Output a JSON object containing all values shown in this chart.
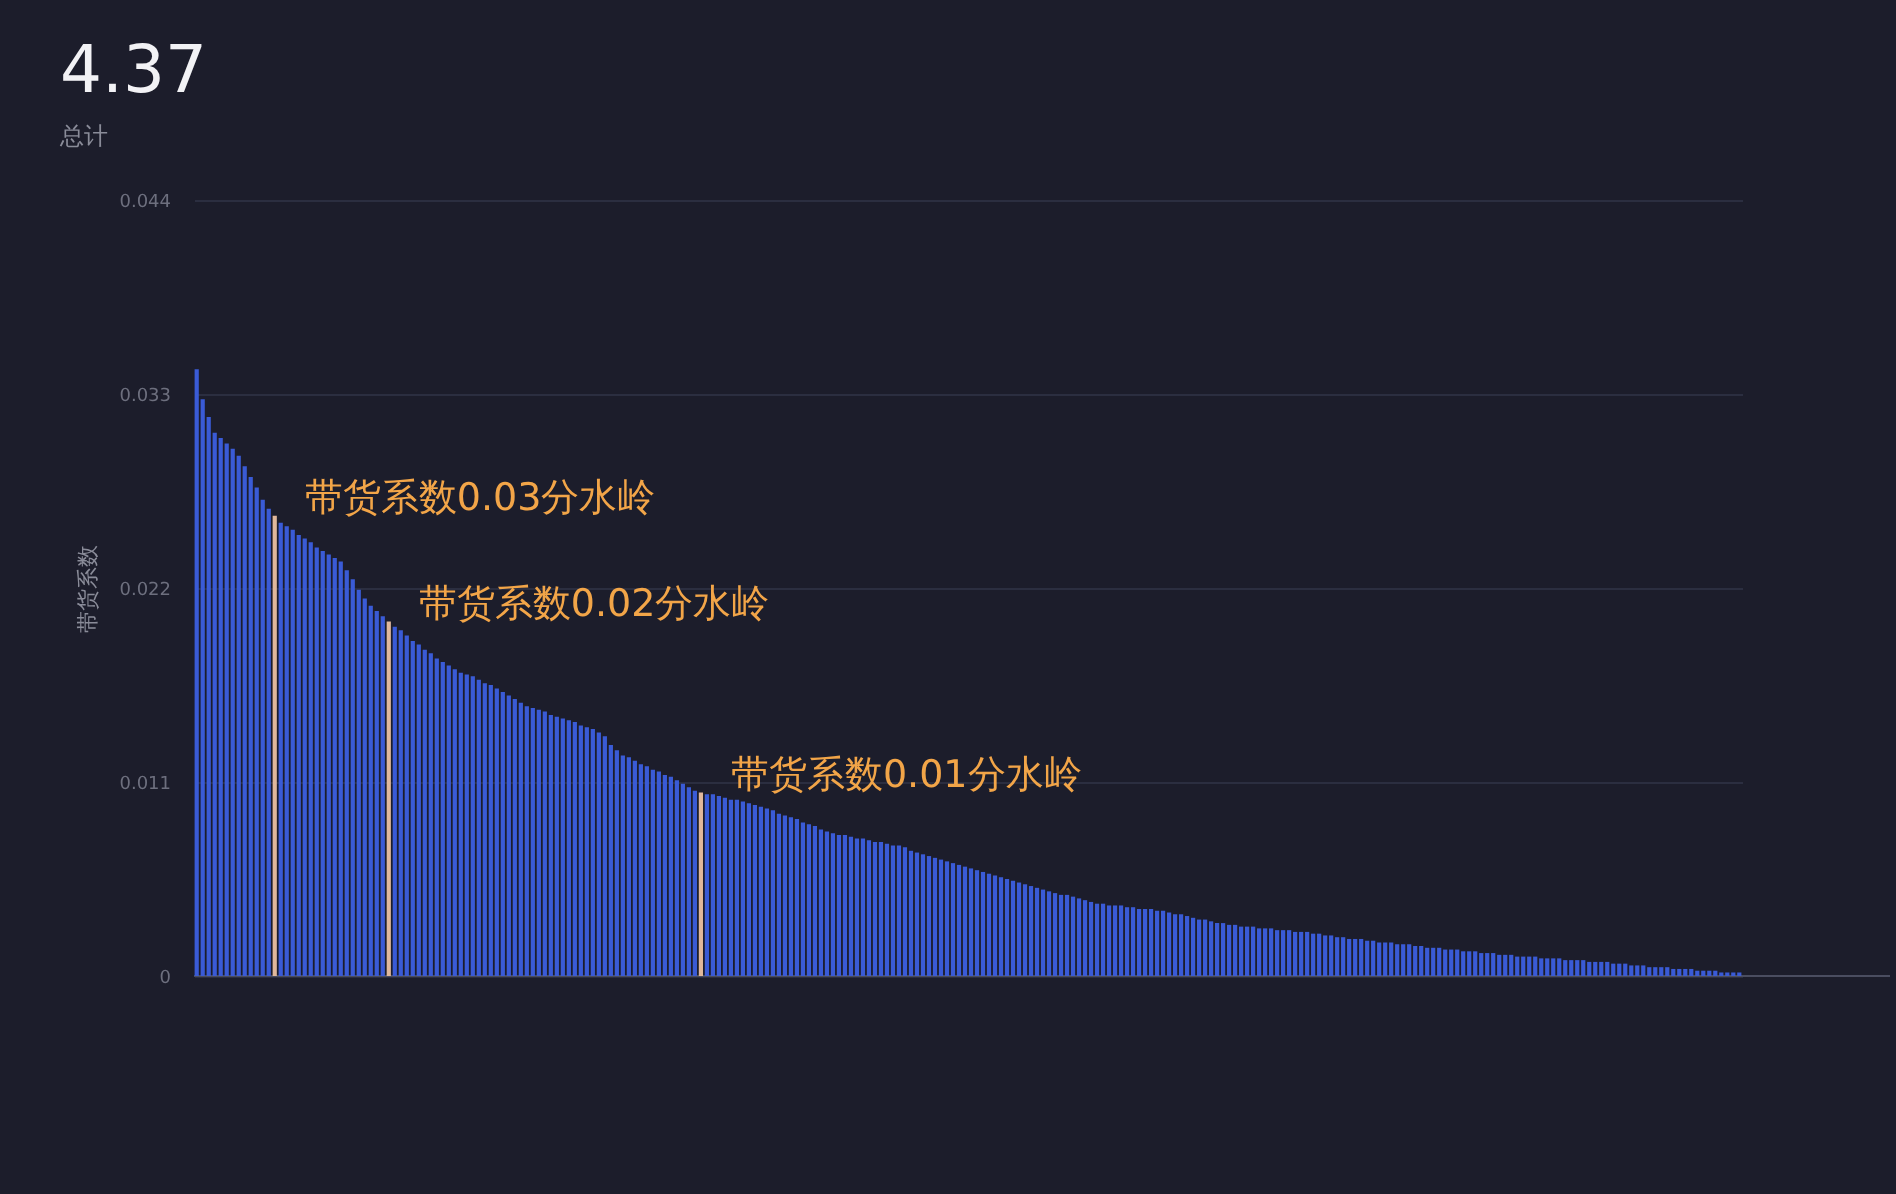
{
  "chart_data": {
    "type": "bar",
    "title": "4.37",
    "subtitle": "总计",
    "ylabel": "带货系数",
    "categories": [
      null,
      null,
      null,
      null,
      null,
      null,
      null,
      null,
      null,
      null,
      null,
      null,
      null,
      null,
      null,
      null,
      null,
      null,
      null,
      null,
      null,
      null,
      null,
      null,
      null,
      null,
      null,
      null,
      null,
      null,
      null,
      null,
      null,
      null,
      null,
      null,
      null,
      null,
      null,
      null,
      null,
      null,
      null,
      null,
      null,
      null,
      null,
      null,
      null,
      null,
      null,
      null,
      null,
      null,
      null,
      null,
      null,
      null,
      null,
      null,
      null,
      null,
      null,
      null,
      null,
      null,
      null,
      null,
      null,
      null,
      null,
      null,
      null,
      null,
      null,
      null,
      null,
      null,
      null,
      null,
      null,
      null,
      null,
      null,
      null,
      null,
      null,
      null,
      null,
      null,
      null,
      null,
      null,
      null,
      null,
      null,
      null,
      null,
      null,
      null,
      null,
      null,
      null,
      null,
      null,
      null,
      null,
      null,
      null,
      null,
      null,
      null,
      null,
      null,
      null,
      null,
      null,
      null,
      null,
      null,
      null,
      null,
      null,
      null,
      null,
      null,
      null,
      null,
      null,
      null,
      null,
      null,
      null,
      null,
      null,
      null,
      null,
      null,
      null,
      null,
      null,
      null,
      null,
      null,
      null,
      null,
      null,
      null,
      null,
      null,
      null,
      null,
      null,
      null,
      null,
      null,
      null,
      null,
      null,
      null,
      null,
      null,
      null,
      null,
      null,
      null,
      null,
      null,
      null,
      null,
      null,
      null,
      null,
      null,
      null,
      null,
      null,
      null,
      null,
      null,
      null,
      null,
      null,
      null,
      null,
      null,
      null,
      null,
      null,
      null,
      null,
      null,
      null,
      null,
      null,
      null,
      null,
      null,
      null,
      null,
      null,
      null,
      null,
      null,
      null,
      null,
      null,
      null,
      null,
      null,
      null,
      null,
      null,
      null,
      null,
      null,
      null,
      null,
      null,
      null,
      null,
      null,
      null,
      null,
      null,
      null,
      null,
      null,
      null,
      null,
      null,
      null,
      null,
      null,
      null,
      null,
      null,
      null,
      null,
      null,
      null,
      null,
      null,
      null,
      null,
      null,
      null,
      null,
      null,
      null,
      null,
      null,
      null,
      null,
      null,
      null,
      null,
      null
    ],
    "values": [
      0.0344,
      0.0327,
      0.0317,
      0.0308,
      0.0305,
      0.0302,
      0.0299,
      0.0295,
      0.0289,
      0.0283,
      0.0277,
      0.027,
      0.0265,
      0.0261,
      0.0257,
      0.0255,
      0.0253,
      0.025,
      0.0248,
      0.0246,
      0.0243,
      0.0241,
      0.0239,
      0.0237,
      0.0235,
      0.023,
      0.0225,
      0.0219,
      0.0214,
      0.021,
      0.0207,
      0.0204,
      0.0201,
      0.0198,
      0.0196,
      0.0193,
      0.019,
      0.0188,
      0.0185,
      0.0183,
      0.018,
      0.0178,
      0.0176,
      0.0174,
      0.0172,
      0.0171,
      0.017,
      0.0168,
      0.0166,
      0.0165,
      0.0163,
      0.0161,
      0.0159,
      0.0157,
      0.0155,
      0.0153,
      0.0152,
      0.0151,
      0.015,
      0.0148,
      0.0147,
      0.0146,
      0.0145,
      0.0144,
      0.0142,
      0.0141,
      0.014,
      0.0138,
      0.0136,
      0.0131,
      0.0128,
      0.0125,
      0.0124,
      0.0122,
      0.012,
      0.0119,
      0.0117,
      0.0116,
      0.0114,
      0.0113,
      0.0111,
      0.0109,
      0.0107,
      0.0105,
      0.0104,
      0.0103,
      0.0103,
      0.0102,
      0.0101,
      0.01,
      0.01,
      0.0099,
      0.0098,
      0.0097,
      0.0096,
      0.0095,
      0.0094,
      0.0092,
      0.0091,
      0.009,
      0.0089,
      0.0087,
      0.0086,
      0.0085,
      0.0083,
      0.0082,
      0.0081,
      0.008,
      0.008,
      0.0079,
      0.0078,
      0.0078,
      0.0077,
      0.0076,
      0.0076,
      0.0075,
      0.0074,
      0.0074,
      0.0073,
      0.0071,
      0.007,
      0.0069,
      0.0068,
      0.0067,
      0.0066,
      0.0065,
      0.0064,
      0.0063,
      0.0062,
      0.0061,
      0.006,
      0.0059,
      0.0058,
      0.0057,
      0.0056,
      0.0055,
      0.0054,
      0.0053,
      0.0052,
      0.0051,
      0.005,
      0.0049,
      0.0048,
      0.0047,
      0.0046,
      0.0046,
      0.0045,
      0.0044,
      0.0043,
      0.0042,
      0.0041,
      0.0041,
      0.004,
      0.004,
      0.004,
      0.0039,
      0.0039,
      0.0038,
      0.0038,
      0.0038,
      0.0037,
      0.0037,
      0.0036,
      0.0035,
      0.0035,
      0.0034,
      0.0033,
      0.0032,
      0.0032,
      0.0031,
      0.003,
      0.003,
      0.0029,
      0.0029,
      0.0028,
      0.0028,
      0.0028,
      0.0027,
      0.0027,
      0.0027,
      0.0026,
      0.0026,
      0.0026,
      0.0025,
      0.0025,
      0.0025,
      0.0024,
      0.0024,
      0.0023,
      0.0023,
      0.0022,
      0.0022,
      0.0021,
      0.0021,
      0.0021,
      0.002,
      0.002,
      0.0019,
      0.0019,
      0.0019,
      0.0018,
      0.0018,
      0.0018,
      0.0017,
      0.0017,
      0.0016,
      0.0016,
      0.0016,
      0.0015,
      0.0015,
      0.0015,
      0.0014,
      0.0014,
      0.0014,
      0.0013,
      0.0013,
      0.0013,
      0.0012,
      0.0012,
      0.0012,
      0.0011,
      0.0011,
      0.0011,
      0.0011,
      0.001,
      0.001,
      0.001,
      0.001,
      0.0009,
      0.0009,
      0.0009,
      0.0009,
      0.0008,
      0.0008,
      0.0008,
      0.0008,
      0.0007,
      0.0007,
      0.0007,
      0.0006,
      0.0006,
      0.0006,
      0.0005,
      0.0005,
      0.0005,
      0.0005,
      0.0004,
      0.0004,
      0.0004,
      0.0004,
      0.0003,
      0.0003,
      0.0003,
      0.0003,
      0.0002,
      0.0002,
      0.0002,
      0.0002
    ],
    "colors": [
      "#3a5bd6",
      "#3a5bd6",
      "#3a5bd6",
      "#3a5bd6",
      "#3a5bd6",
      "#3a5bd6",
      "#3a5bd6",
      "#3a5bd6",
      "#3a5bd6",
      "#3a5bd6",
      "#3a5bd6",
      "#3a5bd6",
      "#3a5bd6",
      "#e0b89c",
      "#3a5bd6",
      "#3a5bd6",
      "#3a5bd6",
      "#3a5bd6",
      "#3a5bd6",
      "#3a5bd6",
      "#3a5bd6",
      "#3a5bd6",
      "#3a5bd6",
      "#3a5bd6",
      "#3a5bd6",
      "#3a5bd6",
      "#3a5bd6",
      "#3a5bd6",
      "#3a5bd6",
      "#3a5bd6",
      "#3a5bd6",
      "#3a5bd6",
      "#e0b89c",
      "#3a5bd6",
      "#3a5bd6",
      "#3a5bd6",
      "#3a5bd6",
      "#3a5bd6",
      "#3a5bd6",
      "#3a5bd6",
      "#3a5bd6",
      "#3a5bd6",
      "#3a5bd6",
      "#3a5bd6",
      "#3a5bd6",
      "#3a5bd6",
      "#3a5bd6",
      "#3a5bd6",
      "#3a5bd6",
      "#3a5bd6",
      "#3a5bd6",
      "#3a5bd6",
      "#3a5bd6",
      "#3a5bd6",
      "#3a5bd6",
      "#3a5bd6",
      "#3a5bd6",
      "#3a5bd6",
      "#3a5bd6",
      "#3a5bd6",
      "#3a5bd6",
      "#3a5bd6",
      "#3a5bd6",
      "#3a5bd6",
      "#3a5bd6",
      "#3a5bd6",
      "#3a5bd6",
      "#3a5bd6",
      "#3a5bd6",
      "#3a5bd6",
      "#3a5bd6",
      "#3a5bd6",
      "#3a5bd6",
      "#3a5bd6",
      "#3a5bd6",
      "#3a5bd6",
      "#3a5bd6",
      "#3a5bd6",
      "#3a5bd6",
      "#3a5bd6",
      "#3a5bd6",
      "#3a5bd6",
      "#3a5bd6",
      "#3a5bd6",
      "#e0b89c",
      "#3a5bd6",
      "#3a5bd6",
      "#3a5bd6",
      "#3a5bd6",
      "#3a5bd6",
      "#3a5bd6",
      "#3a5bd6",
      "#3a5bd6",
      "#3a5bd6",
      "#3a5bd6",
      "#3a5bd6",
      "#3a5bd6",
      "#3a5bd6",
      "#3a5bd6",
      "#3a5bd6",
      "#3a5bd6",
      "#3a5bd6",
      "#3a5bd6",
      "#3a5bd6",
      "#3a5bd6",
      "#3a5bd6",
      "#3a5bd6",
      "#3a5bd6",
      "#3a5bd6",
      "#3a5bd6",
      "#3a5bd6",
      "#3a5bd6",
      "#3a5bd6",
      "#3a5bd6",
      "#3a5bd6",
      "#3a5bd6",
      "#3a5bd6",
      "#3a5bd6",
      "#3a5bd6",
      "#3a5bd6",
      "#3a5bd6",
      "#3a5bd6",
      "#3a5bd6",
      "#3a5bd6",
      "#3a5bd6",
      "#3a5bd6",
      "#3a5bd6",
      "#3a5bd6",
      "#3a5bd6",
      "#3a5bd6",
      "#3a5bd6",
      "#3a5bd6",
      "#3a5bd6",
      "#3a5bd6",
      "#3a5bd6",
      "#3a5bd6",
      "#3a5bd6",
      "#3a5bd6",
      "#3a5bd6",
      "#3a5bd6",
      "#3a5bd6",
      "#3a5bd6",
      "#3a5bd6",
      "#3a5bd6",
      "#3a5bd6",
      "#3a5bd6",
      "#3a5bd6",
      "#3a5bd6",
      "#3a5bd6",
      "#3a5bd6",
      "#3a5bd6",
      "#3a5bd6",
      "#3a5bd6",
      "#3a5bd6",
      "#3a5bd6",
      "#3a5bd6",
      "#3a5bd6",
      "#3a5bd6",
      "#3a5bd6",
      "#3a5bd6",
      "#3a5bd6",
      "#3a5bd6",
      "#3a5bd6",
      "#3a5bd6",
      "#3a5bd6",
      "#3a5bd6",
      "#3a5bd6",
      "#3a5bd6",
      "#3a5bd6",
      "#3a5bd6",
      "#3a5bd6",
      "#3a5bd6",
      "#3a5bd6",
      "#3a5bd6",
      "#3a5bd6",
      "#3a5bd6",
      "#3a5bd6",
      "#3a5bd6",
      "#3a5bd6",
      "#3a5bd6",
      "#3a5bd6",
      "#3a5bd6",
      "#3a5bd6",
      "#3a5bd6",
      "#3a5bd6",
      "#3a5bd6",
      "#3a5bd6",
      "#3a5bd6",
      "#3a5bd6",
      "#3a5bd6",
      "#3a5bd6",
      "#3a5bd6",
      "#3a5bd6",
      "#3a5bd6",
      "#3a5bd6",
      "#3a5bd6",
      "#3a5bd6",
      "#3a5bd6",
      "#3a5bd6",
      "#3a5bd6",
      "#3a5bd6",
      "#3a5bd6",
      "#3a5bd6",
      "#3a5bd6",
      "#3a5bd6",
      "#3a5bd6",
      "#3a5bd6",
      "#3a5bd6",
      "#3a5bd6",
      "#3a5bd6",
      "#3a5bd6",
      "#3a5bd6",
      "#3a5bd6",
      "#3a5bd6",
      "#3a5bd6",
      "#3a5bd6",
      "#3a5bd6",
      "#3a5bd6",
      "#3a5bd6",
      "#3a5bd6",
      "#3a5bd6",
      "#3a5bd6",
      "#3a5bd6",
      "#3a5bd6",
      "#3a5bd6",
      "#3a5bd6",
      "#3a5bd6",
      "#3a5bd6",
      "#3a5bd6",
      "#3a5bd6",
      "#3a5bd6",
      "#3a5bd6",
      "#3a5bd6",
      "#3a5bd6",
      "#3a5bd6",
      "#3a5bd6",
      "#3a5bd6",
      "#3a5bd6",
      "#3a5bd6",
      "#3a5bd6",
      "#3a5bd6",
      "#3a5bd6",
      "#3a5bd6",
      "#3a5bd6",
      "#3a5bd6",
      "#3a5bd6",
      "#3a5bd6",
      "#3a5bd6",
      "#3a5bd6",
      "#3a5bd6",
      "#3a5bd6",
      "#3a5bd6",
      "#3a5bd6",
      "#3a5bd6",
      "#3a5bd6",
      "#3a5bd6",
      "#3a5bd6",
      "#3a5bd6"
    ],
    "ylim": [
      0,
      0.044
    ],
    "yticks": [
      0,
      0.011,
      0.022,
      0.033,
      0.044
    ],
    "grid": "y",
    "annotations": [
      "带货系数0.03分水岭",
      "带货系数0.02分水岭",
      "带货系数0.01分水岭"
    ]
  }
}
